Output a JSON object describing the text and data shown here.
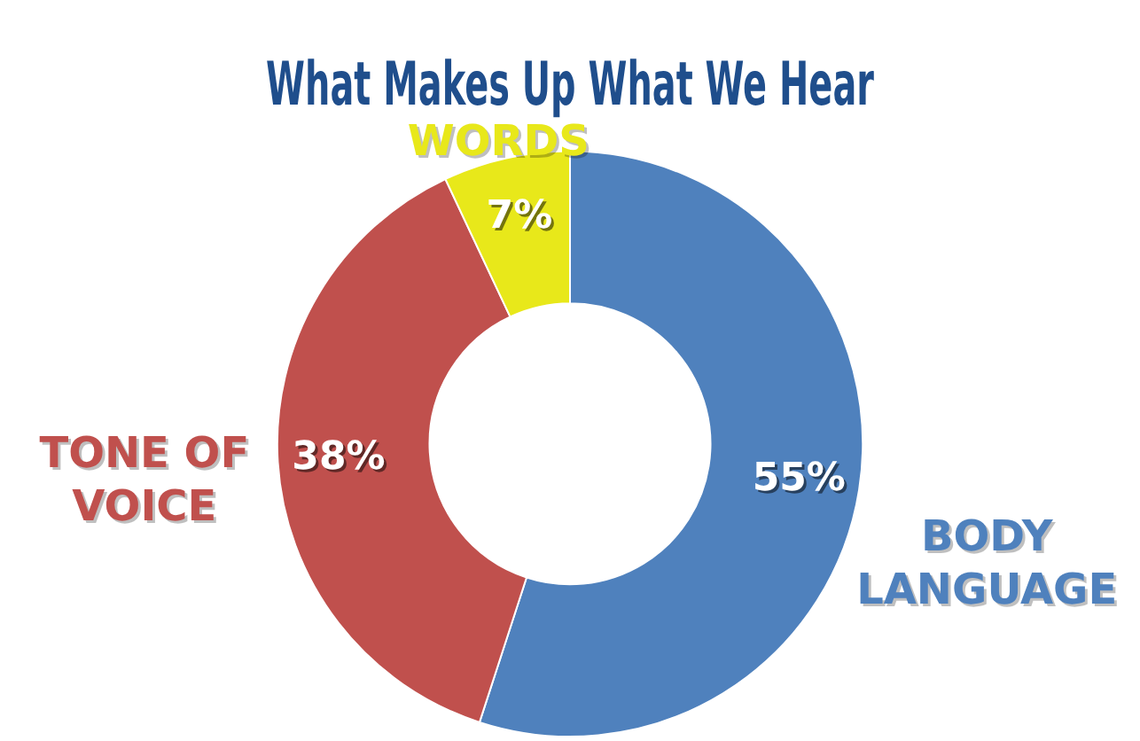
{
  "chart_data": {
    "type": "donut",
    "title": "What Makes Up What We Hear",
    "categories": [
      "BODY LANGUAGE",
      "TONE OF VOICE",
      "WORDS"
    ],
    "values": [
      55,
      38,
      7
    ],
    "colors": [
      "#4f81bd",
      "#c0504d",
      "#e8e81a"
    ],
    "value_labels": [
      "55%",
      "38%",
      "7%"
    ],
    "legend": false
  }
}
